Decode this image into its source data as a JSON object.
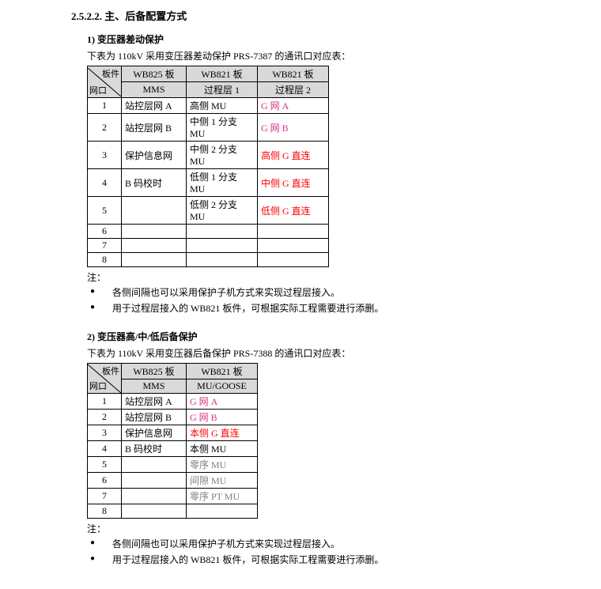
{
  "heading": "2.5.2.2. 主、后备配置方式",
  "section1": {
    "title": "1) 变压器差动保护",
    "intro": "下表为 110kV 采用变压器差动保护 PRS-7387 的通讯口对应表：",
    "diag_top": "板件",
    "diag_bot": "网口",
    "headers": [
      {
        "l1": "WB825 板",
        "l2": "MMS"
      },
      {
        "l1": "WB821 板",
        "l2": "过程层 1"
      },
      {
        "l1": "WB821 板",
        "l2": "过程层 2"
      }
    ],
    "rows": [
      {
        "idx": "1",
        "c1": "站控层网 A",
        "c2": "高侧 MU",
        "c3": "G 网 A",
        "c3_class": "magenta"
      },
      {
        "idx": "2",
        "c1": "站控层网 B",
        "c2": "中侧 1 分支 MU",
        "c3": "G 网 B",
        "c3_class": "magenta"
      },
      {
        "idx": "3",
        "c1": "保护信息网",
        "c2": "中侧 2 分支 MU",
        "c3": "高侧 G 直连",
        "c3_class": "red"
      },
      {
        "idx": "4",
        "c1": "B 码校时",
        "c2": "低侧 1 分支 MU",
        "c3": "中侧 G 直连",
        "c3_class": "red"
      },
      {
        "idx": "5",
        "c1": "",
        "c2": "低侧 2 分支 MU",
        "c3": "低侧 G 直连",
        "c3_class": "red"
      },
      {
        "idx": "6",
        "c1": "",
        "c2": "",
        "c3": ""
      },
      {
        "idx": "7",
        "c1": "",
        "c2": "",
        "c3": ""
      },
      {
        "idx": "8",
        "c1": "",
        "c2": "",
        "c3": ""
      }
    ],
    "note_label": "注：",
    "notes": [
      "各侧间隔也可以采用保护子机方式来实现过程层接入。",
      "用于过程层接入的 WB821 板件，可根据实际工程需要进行添删。"
    ]
  },
  "section2": {
    "title": "2) 变压器高/中/低后备保护",
    "intro": "下表为 110kV 采用变压器后备保护 PRS-7388 的通讯口对应表：",
    "diag_top": "板件",
    "diag_bot": "网口",
    "headers": [
      {
        "l1": "WB825 板",
        "l2": "MMS"
      },
      {
        "l1": "WB821 板",
        "l2": "MU/GOOSE"
      }
    ],
    "rows": [
      {
        "idx": "1",
        "c1": "站控层网 A",
        "c2": "G 网 A",
        "c2_class": "magenta"
      },
      {
        "idx": "2",
        "c1": "站控层网 B",
        "c2": "G 网 B",
        "c2_class": "magenta"
      },
      {
        "idx": "3",
        "c1": "保护信息网",
        "c2": "本侧 G 直连",
        "c2_class": "red"
      },
      {
        "idx": "4",
        "c1": "B 码校时",
        "c2": "本侧 MU"
      },
      {
        "idx": "5",
        "c1": "",
        "c2": "零序 MU",
        "c2_class": "gray"
      },
      {
        "idx": "6",
        "c1": "",
        "c2": "间隙 MU",
        "c2_class": "gray"
      },
      {
        "idx": "7",
        "c1": "",
        "c2": "零序 PT MU",
        "c2_class": "gray"
      },
      {
        "idx": "8",
        "c1": "",
        "c2": ""
      }
    ],
    "note_label": "注：",
    "notes": [
      "各侧间隔也可以采用保护子机方式来实现过程层接入。",
      "用于过程层接入的 WB821 板件，可根据实际工程需要进行添删。"
    ]
  }
}
